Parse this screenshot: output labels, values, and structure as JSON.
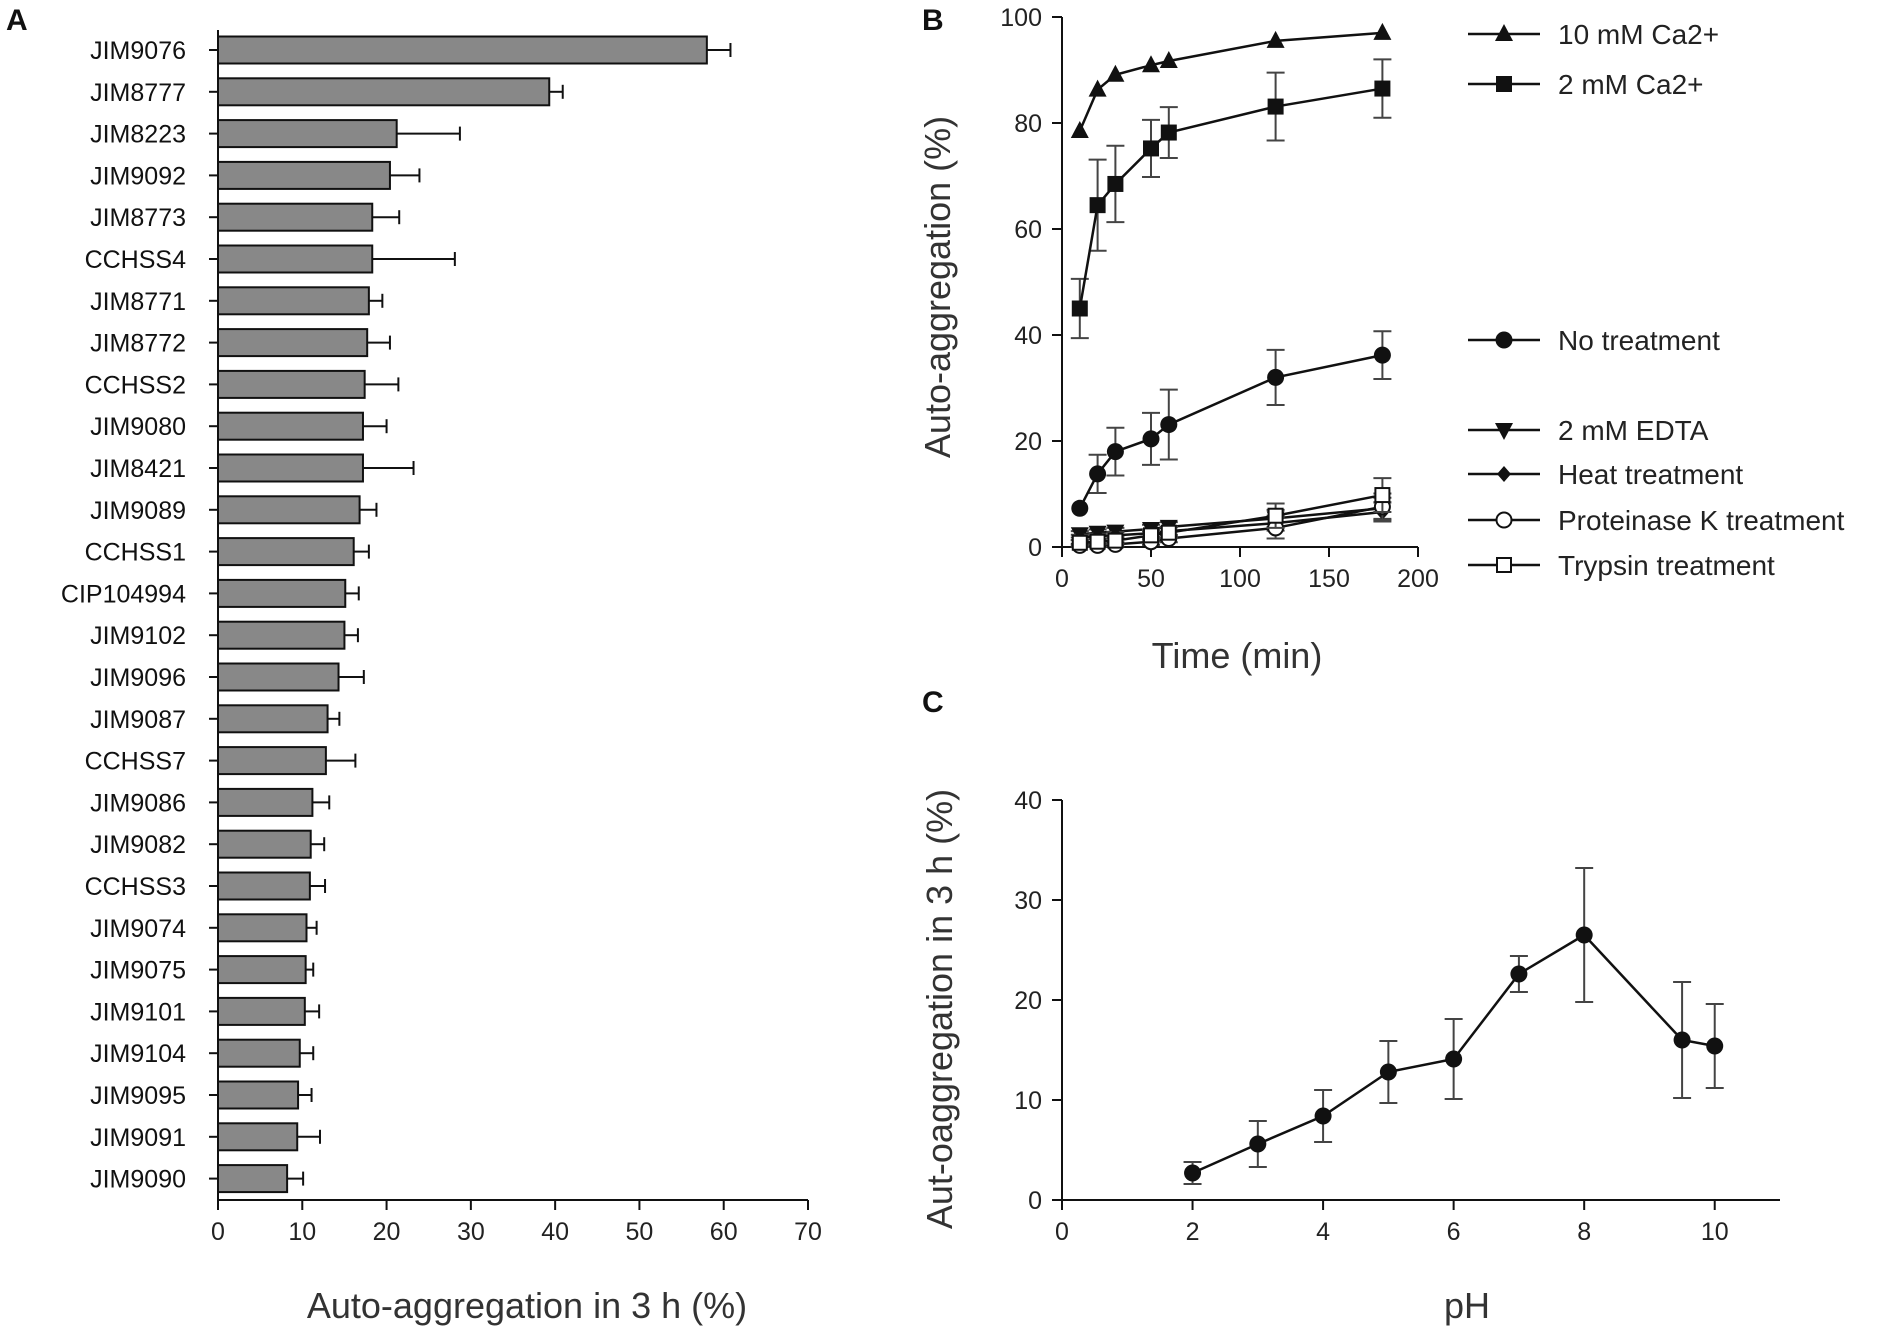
{
  "panels": {
    "a": {
      "label": "A"
    },
    "b": {
      "label": "B"
    },
    "c": {
      "label": "C"
    }
  },
  "colors": {
    "bar": "#888888",
    "ink": "#111111",
    "error": "#444444"
  },
  "chart_data": [
    {
      "id": "a",
      "type": "bar",
      "orientation": "horizontal",
      "xlabel": "Auto-aggregation in 3 h (%)",
      "ylabel": "",
      "xlim": [
        0,
        70
      ],
      "xticks": [
        0,
        10,
        20,
        30,
        40,
        50,
        60,
        70
      ],
      "categories": [
        "JIM9076",
        "JIM8777",
        "JIM8223",
        "JIM9092",
        "JIM8773",
        "CCHSS4",
        "JIM8771",
        "JIM8772",
        "CCHSS2",
        "JIM9080",
        "JIM8421",
        "JIM9089",
        "CCHSS1",
        "CIP104994",
        "JIM9102",
        "JIM9096",
        "JIM9087",
        "CCHSS7",
        "JIM9086",
        "JIM9082",
        "CCHSS3",
        "JIM9074",
        "JIM9075",
        "JIM9101",
        "JIM9104",
        "JIM9095",
        "JIM9091",
        "JIM9090"
      ],
      "values": [
        58,
        39.3,
        21.2,
        20.4,
        18.3,
        18.3,
        17.9,
        17.7,
        17.4,
        17.2,
        17.2,
        16.8,
        16.1,
        15.1,
        15.0,
        14.3,
        13.0,
        12.8,
        11.2,
        11.0,
        10.9,
        10.5,
        10.4,
        10.3,
        9.7,
        9.5,
        9.4,
        8.2
      ],
      "errors": [
        2.8,
        1.6,
        7.5,
        3.5,
        3.2,
        9.8,
        1.6,
        2.7,
        4.0,
        2.8,
        6.0,
        2.0,
        1.8,
        1.6,
        1.6,
        3.0,
        1.4,
        3.5,
        2.0,
        1.6,
        1.8,
        1.2,
        0.9,
        1.7,
        1.6,
        1.6,
        2.7,
        1.9
      ]
    },
    {
      "id": "b",
      "type": "line",
      "xlabel": "Time (min)",
      "ylabel": "Auto-aggregation (%)",
      "xlim": [
        0,
        200
      ],
      "ylim": [
        0,
        100
      ],
      "xticks": [
        0,
        50,
        100,
        150,
        200
      ],
      "yticks": [
        0,
        20,
        40,
        60,
        80,
        100
      ],
      "series": [
        {
          "name": "10 mM Ca2+",
          "marker": "triangle-up",
          "x": [
            10,
            20,
            30,
            50,
            60,
            120,
            180
          ],
          "y": [
            78.5,
            86.3,
            89.1,
            90.9,
            91.7,
            95.5,
            97.0
          ],
          "err": [
            0,
            0,
            0,
            0,
            0,
            0,
            0
          ]
        },
        {
          "name": "2 mM Ca2+",
          "marker": "square",
          "x": [
            10,
            20,
            30,
            50,
            60,
            120,
            180
          ],
          "y": [
            45.0,
            64.5,
            68.5,
            75.2,
            78.2,
            83.1,
            86.5
          ],
          "err": [
            5.6,
            8.6,
            7.2,
            5.4,
            4.8,
            6.4,
            5.5
          ]
        },
        {
          "name": "No treatment",
          "marker": "circle",
          "x": [
            10,
            20,
            30,
            50,
            60,
            120,
            180
          ],
          "y": [
            7.3,
            13.8,
            18.0,
            20.4,
            23.1,
            32.0,
            36.2
          ],
          "err": [
            0,
            3.6,
            4.5,
            4.9,
            6.6,
            5.2,
            4.5
          ]
        },
        {
          "name": "2 mM EDTA",
          "marker": "triangle-down",
          "x": [
            10,
            20,
            30,
            50,
            60,
            120,
            180
          ],
          "y": [
            2.4,
            2.7,
            2.9,
            3.4,
            3.8,
            5.4,
            7.3
          ],
          "err": [
            0.6,
            0.6,
            0.7,
            0.8,
            0.9,
            1.6,
            2.0
          ]
        },
        {
          "name": "Heat treatment",
          "marker": "diamond",
          "x": [
            10,
            20,
            30,
            50,
            60,
            120,
            180
          ],
          "y": [
            1.8,
            2.0,
            2.2,
            2.6,
            3.0,
            4.5,
            6.6
          ],
          "err": [
            0.5,
            0.5,
            0.6,
            0.7,
            0.8,
            1.4,
            1.8
          ]
        },
        {
          "name": "Proteinase K treatment",
          "marker": "circle-open",
          "x": [
            10,
            20,
            30,
            50,
            60,
            120,
            180
          ],
          "y": [
            0.3,
            0.3,
            0.5,
            1.0,
            1.6,
            3.6,
            7.6
          ],
          "err": [
            0.3,
            0.3,
            0.4,
            0.6,
            0.7,
            2.0,
            2.5
          ]
        },
        {
          "name": "Trypsin treatment",
          "marker": "square-open",
          "x": [
            10,
            20,
            30,
            50,
            60,
            120,
            180
          ],
          "y": [
            0.8,
            1.0,
            1.2,
            2.2,
            2.7,
            5.9,
            9.8
          ],
          "err": [
            0.5,
            0.5,
            0.6,
            0.8,
            1.0,
            2.3,
            3.2
          ]
        }
      ]
    },
    {
      "id": "c",
      "type": "line",
      "xlabel": "pH",
      "ylabel": "Aut-oaggregation in 3 h (%)",
      "xlim": [
        0,
        11
      ],
      "ylim": [
        0,
        40
      ],
      "xticks": [
        0,
        2,
        4,
        6,
        8,
        10
      ],
      "yticks": [
        0,
        10,
        20,
        30,
        40
      ],
      "series": [
        {
          "name": "pH",
          "marker": "circle",
          "x": [
            2,
            3,
            4,
            5,
            6,
            7,
            8,
            9.5,
            10
          ],
          "y": [
            2.7,
            5.6,
            8.4,
            12.8,
            14.1,
            22.6,
            26.5,
            16.0,
            15.4
          ],
          "err": [
            1.1,
            2.3,
            2.6,
            3.1,
            4.0,
            1.8,
            6.7,
            5.8,
            4.2
          ]
        }
      ]
    }
  ]
}
